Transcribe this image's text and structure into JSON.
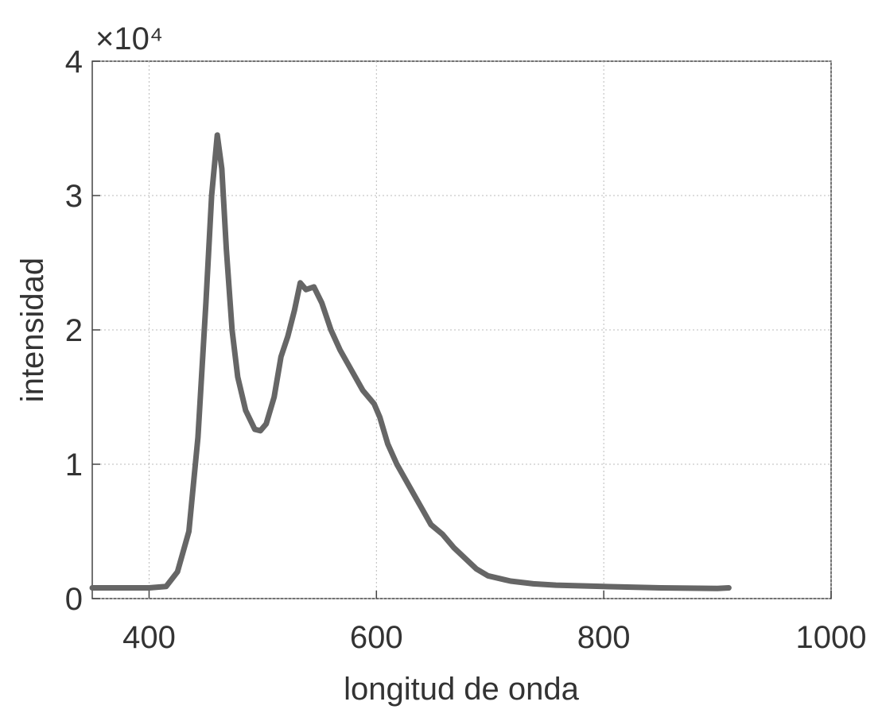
{
  "chart_data": {
    "type": "line",
    "xlabel": "longitud de onda",
    "ylabel": "intensidad",
    "y_multiplier": "×10⁴",
    "xlim": [
      350,
      1000
    ],
    "xticks": [
      400,
      600,
      800,
      1000
    ],
    "ylim": [
      0,
      40000
    ],
    "yticks": [
      {
        "value": 0,
        "label": "0"
      },
      {
        "value": 10000,
        "label": "1"
      },
      {
        "value": 20000,
        "label": "2"
      },
      {
        "value": 30000,
        "label": "3"
      },
      {
        "value": 40000,
        "label": "4"
      }
    ],
    "grid": true,
    "series": [
      {
        "color": "#666666",
        "x": [
          350,
          380,
          400,
          415,
          425,
          435,
          443,
          450,
          455,
          460,
          464,
          468,
          473,
          478,
          485,
          493,
          498,
          503,
          510,
          516,
          522,
          528,
          533,
          538,
          545,
          552,
          560,
          568,
          578,
          588,
          598,
          603,
          610,
          618,
          628,
          638,
          648,
          658,
          668,
          678,
          688,
          698,
          718,
          738,
          758,
          800,
          850,
          900,
          910
        ],
        "values": [
          800,
          800,
          800,
          900,
          2000,
          5000,
          12000,
          22000,
          30000,
          34500,
          32000,
          26000,
          20000,
          16500,
          14000,
          12600,
          12500,
          13000,
          15000,
          18000,
          19500,
          21500,
          23500,
          23000,
          23200,
          22000,
          20000,
          18500,
          17000,
          15500,
          14500,
          13500,
          11500,
          10000,
          8500,
          7000,
          5500,
          4800,
          3800,
          3000,
          2200,
          1700,
          1300,
          1100,
          1000,
          900,
          800,
          750,
          800
        ]
      }
    ]
  }
}
